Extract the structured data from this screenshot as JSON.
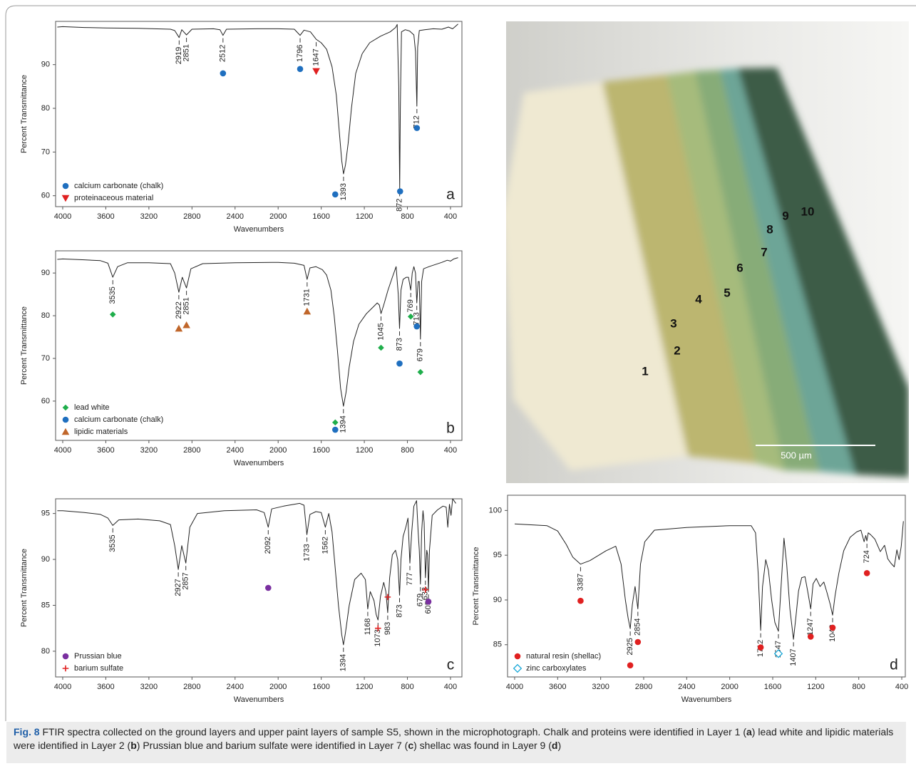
{
  "chart_data": [
    {
      "type": "line",
      "panel": "a",
      "xlabel": "Wavenumbers",
      "ylabel": "Percent Transmittance",
      "xlim": [
        4066,
        294
      ],
      "ylim": [
        57.5,
        99.9
      ],
      "xticks": [
        4000,
        3600,
        3200,
        2800,
        2400,
        2000,
        1600,
        1200,
        800,
        400
      ],
      "yticks": [
        60,
        70,
        80,
        90
      ],
      "legend": "lower left",
      "series": [
        {
          "color": "#222222",
          "x": [
            4050,
            4000,
            3800,
            3600,
            3300,
            3000,
            2960,
            2919,
            2895,
            2851,
            2800,
            2600,
            2540,
            2512,
            2480,
            2200,
            2000,
            1850,
            1796,
            1760,
            1700,
            1647,
            1600,
            1550,
            1500,
            1460,
            1430,
            1410,
            1393,
            1375,
            1350,
            1320,
            1280,
            1220,
            1150,
            1050,
            960,
            910,
            895,
            880,
            872,
            866,
            855,
            820,
            780,
            740,
            725,
            712,
            705,
            690,
            640,
            560,
            480,
            420,
            380,
            330
          ],
          "values": [
            98.6,
            98.7,
            98.5,
            98.4,
            98.3,
            98.1,
            97.8,
            96.2,
            98,
            96.8,
            98.1,
            98.2,
            98,
            96.7,
            98.1,
            98.2,
            98.2,
            98.1,
            96.7,
            97.9,
            97.5,
            95.8,
            95,
            93.5,
            89.5,
            83,
            74,
            68,
            65,
            67,
            72,
            80,
            88,
            92.5,
            95,
            96.5,
            97.5,
            98.5,
            99.2,
            85,
            61.5,
            80,
            97.5,
            98,
            97.7,
            96.8,
            93,
            80.5,
            94,
            97.8,
            98,
            98.2,
            98.1,
            98.6,
            98.2,
            99.3
          ]
        },
        {
          "name": "calcium carbonate (chalk)",
          "color": "#1f6fbf",
          "marker": "circle",
          "x": [
            2512,
            1796,
            1470,
            868,
            712
          ],
          "values": [
            88,
            89,
            60.3,
            61,
            75.5
          ]
        },
        {
          "name": "proteinaceous material",
          "color": "#e02020",
          "marker": "triangle-down",
          "x": [
            1647
          ],
          "values": [
            88.5
          ]
        }
      ],
      "peaks": [
        2919,
        2851,
        2512,
        1796,
        1647,
        1393,
        872,
        712
      ]
    },
    {
      "type": "line",
      "panel": "b",
      "xlabel": "Wavenumbers",
      "ylabel": "Percent Transmittance",
      "xlim": [
        4066,
        294
      ],
      "ylim": [
        50.8,
        95.2
      ],
      "xticks": [
        4000,
        3600,
        3200,
        2800,
        2400,
        2000,
        1600,
        1200,
        800,
        400
      ],
      "yticks": [
        60,
        70,
        80,
        90
      ],
      "legend": "lower left",
      "series": [
        {
          "color": "#222222",
          "x": [
            4050,
            4000,
            3800,
            3650,
            3580,
            3535,
            3490,
            3400,
            3200,
            3000,
            2960,
            2922,
            2890,
            2851,
            2810,
            2700,
            2400,
            2000,
            1850,
            1760,
            1731,
            1705,
            1650,
            1590,
            1550,
            1510,
            1480,
            1450,
            1420,
            1394,
            1370,
            1340,
            1300,
            1250,
            1180,
            1120,
            1080,
            1060,
            1045,
            1020,
            980,
            940,
            905,
            885,
            873,
            860,
            840,
            810,
            790,
            769,
            755,
            740,
            725,
            713,
            700,
            690,
            679,
            668,
            650,
            600,
            540,
            480,
            430,
            400,
            370,
            330
          ],
          "values": [
            93.2,
            93.3,
            93.1,
            92.9,
            92.3,
            89,
            91.5,
            92.4,
            92.4,
            92.2,
            90,
            85.5,
            89,
            86.5,
            91,
            92.2,
            92.4,
            92.5,
            92.3,
            91.8,
            88.5,
            91.2,
            91.5,
            90.8,
            89.5,
            86,
            80,
            72,
            63,
            58.8,
            62,
            68,
            74,
            78,
            80.5,
            82,
            83,
            82.5,
            80.5,
            82.5,
            86,
            89,
            91.5,
            85,
            77,
            86,
            88.5,
            89,
            89,
            86,
            90,
            91.5,
            90,
            83,
            88,
            88,
            74.5,
            88,
            91,
            91.5,
            92,
            92.5,
            93,
            92.8,
            93.3,
            93.6
          ]
        },
        {
          "name": "lead white",
          "color": "#1fae4b",
          "marker": "diamond",
          "x": [
            3535,
            1470,
            1045,
            769,
            679
          ],
          "values": [
            80.3,
            55,
            72.5,
            79.8,
            66.8
          ]
        },
        {
          "name": "calcium carbonate (chalk)",
          "color": "#1f6fbf",
          "marker": "circle",
          "x": [
            1470,
            873,
            713
          ],
          "values": [
            53.3,
            68.8,
            77.5
          ]
        },
        {
          "name": "lipidic materials",
          "color": "#c0662a",
          "marker": "triangle-up",
          "x": [
            2922,
            2851,
            1731
          ],
          "values": [
            77,
            77.8,
            81
          ]
        }
      ],
      "peaks": [
        3535,
        2922,
        2851,
        1731,
        1394,
        1045,
        873,
        769,
        713,
        679
      ]
    },
    {
      "type": "line",
      "panel": "c",
      "xlabel": "Wavenumbers",
      "ylabel": "Percent Transmittance",
      "xlim": [
        4066,
        294
      ],
      "ylim": [
        77.2,
        96.6
      ],
      "xticks": [
        4000,
        3600,
        3200,
        2800,
        2400,
        2000,
        1600,
        1200,
        800,
        400
      ],
      "yticks": [
        80,
        85,
        90,
        95
      ],
      "legend": "lower left",
      "series": [
        {
          "color": "#222222",
          "x": [
            4050,
            4000,
            3800,
            3650,
            3580,
            3535,
            3480,
            3300,
            3100,
            3000,
            2960,
            2927,
            2895,
            2857,
            2820,
            2750,
            2500,
            2200,
            2130,
            2092,
            2060,
            1950,
            1800,
            1760,
            1733,
            1705,
            1650,
            1600,
            1562,
            1530,
            1500,
            1470,
            1440,
            1410,
            1394,
            1375,
            1340,
            1290,
            1230,
            1190,
            1168,
            1145,
            1110,
            1090,
            1073,
            1050,
            1020,
            1000,
            983,
            965,
            940,
            910,
            890,
            873,
            860,
            840,
            815,
            795,
            777,
            760,
            740,
            715,
            700,
            690,
            679,
            668,
            655,
            645,
            633,
            620,
            612,
            605,
            595,
            570,
            520,
            470,
            440,
            425,
            410,
            395,
            380,
            350
          ],
          "values": [
            95.3,
            95.3,
            95.1,
            94.9,
            94.5,
            93.7,
            94.3,
            94.4,
            94.2,
            93.8,
            91.5,
            88.9,
            91.5,
            89.6,
            93.5,
            95,
            95.3,
            95.4,
            95.1,
            93.5,
            95.5,
            95.8,
            96.1,
            95.9,
            92.7,
            94.9,
            95.2,
            95.1,
            93.5,
            95,
            93,
            89,
            85,
            81.8,
            80.7,
            82,
            85,
            87.8,
            88.5,
            87.8,
            84.6,
            86.5,
            85.5,
            84,
            83.4,
            86,
            87.5,
            86.5,
            84.2,
            88,
            90.5,
            91,
            90,
            86.1,
            90,
            92.5,
            93.5,
            94.5,
            89.6,
            93,
            95.8,
            96.4,
            93,
            91,
            87.3,
            93,
            95.3,
            94,
            88,
            91,
            90.5,
            86.5,
            91,
            94.8,
            95.4,
            95.8,
            95.7,
            93.5,
            96,
            94.8,
            96.6,
            96.1
          ]
        },
        {
          "name": "Prussian blue",
          "color": "#7a2fa0",
          "marker": "circle",
          "x": [
            2092,
            605
          ],
          "values": [
            86.9,
            85.4
          ]
        },
        {
          "name": "barium sulfate",
          "color": "#e02020",
          "marker": "plus",
          "x": [
            1073,
            983,
            633
          ],
          "values": [
            82.5,
            85.9,
            86.7
          ]
        }
      ],
      "peaks": [
        3535,
        2927,
        2857,
        2092,
        1733,
        1562,
        1394,
        1168,
        1073,
        983,
        873,
        777,
        679,
        633,
        605
      ]
    },
    {
      "type": "line",
      "panel": "d",
      "xlabel": "Wavenumbers",
      "ylabel": "Percent Transmittance",
      "xlim": [
        4066,
        367
      ],
      "ylim": [
        81.4,
        101.7
      ],
      "xticks": [
        4000,
        3600,
        3200,
        2800,
        2400,
        2000,
        1600,
        1200,
        800,
        400
      ],
      "yticks": [
        85,
        90,
        95,
        100
      ],
      "legend": "lower left",
      "series": [
        {
          "color": "#222222",
          "x": [
            4000,
            3850,
            3700,
            3600,
            3520,
            3460,
            3387,
            3300,
            3150,
            3060,
            3010,
            2970,
            2945,
            2925,
            2905,
            2880,
            2854,
            2830,
            2790,
            2700,
            2400,
            2000,
            1800,
            1760,
            1735,
            1712,
            1695,
            1665,
            1640,
            1610,
            1580,
            1547,
            1520,
            1495,
            1470,
            1440,
            1407,
            1385,
            1360,
            1330,
            1300,
            1275,
            1247,
            1225,
            1195,
            1160,
            1125,
            1095,
            1065,
            1043,
            1020,
            985,
            940,
            880,
            820,
            780,
            750,
            735,
            724,
            712,
            690,
            650,
            600,
            560,
            530,
            500,
            470,
            445,
            425,
            405,
            385
          ],
          "values": [
            98.5,
            98.4,
            98.3,
            97.7,
            96.2,
            94.8,
            94,
            94.4,
            95.5,
            96,
            94,
            90,
            88,
            86.8,
            89.5,
            91.5,
            89,
            94,
            96.5,
            97.8,
            98.1,
            98.3,
            98.3,
            97.5,
            93,
            86.6,
            91.5,
            94.5,
            93.3,
            90,
            87.5,
            86.5,
            92,
            96.9,
            94,
            89,
            85.6,
            88,
            91,
            92.5,
            92.6,
            91,
            89,
            91.8,
            92.4,
            91.5,
            92,
            90.8,
            89.5,
            88.3,
            90.5,
            93,
            95.5,
            97,
            97.6,
            97.8,
            96.5,
            97.2,
            96.6,
            97.5,
            97.3,
            96.8,
            95.4,
            96.1,
            94.6,
            94.1,
            93.7,
            95.6,
            94.5,
            96,
            98.8
          ]
        },
        {
          "name": "natural resin (shellac)",
          "color": "#e02020",
          "marker": "circle",
          "x": [
            3387,
            2925,
            2854,
            1712,
            1247,
            1043,
            724
          ],
          "values": [
            89.9,
            82.7,
            85.3,
            84.7,
            85.9,
            86.9,
            93
          ]
        },
        {
          "name": "zinc carboxylates",
          "color": "#19a8d8",
          "marker": "diamond-open",
          "x": [
            1547
          ],
          "values": [
            84
          ]
        }
      ],
      "peaks": [
        3387,
        2925,
        2854,
        1712,
        1547,
        1407,
        1247,
        1043,
        724
      ]
    }
  ],
  "photo": {
    "labels": [
      "1",
      "2",
      "3",
      "4",
      "5",
      "6",
      "7",
      "8",
      "9",
      "10"
    ],
    "scale_bar": "500 µm"
  },
  "caption": {
    "label": "Fig. 8",
    "text": [
      " FTIR spectra collected on the ground layers and upper paint layers of sample S5, shown in the microphotograph. Chalk and proteins were identified in Layer 1 (",
      "a",
      ") lead white and lipidic materials were identified in Layer 2 (",
      "b",
      ") Prussian blue and barium sulfate were identified in Layer 7 (",
      "c",
      ") shellac was found in Layer 9 (",
      "d",
      ")"
    ]
  }
}
